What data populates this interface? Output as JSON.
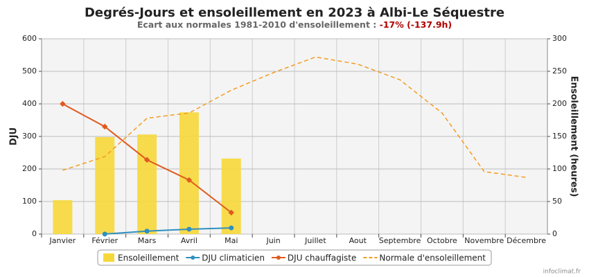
{
  "chart_data": {
    "type": "combo",
    "title": "Degrés-Jours et ensoleillement en 2023 à Albi-Le Séquestre",
    "subtitle": "Ecart aux normales 1981-2010 d'ensoleillement : ",
    "subtitle_highlight": "-17% (-137.9h)",
    "y_label": "DJU",
    "y2_label": "Ensoleillement (heures)",
    "categories": [
      "Janvier",
      "Février",
      "Mars",
      "Avril",
      "Mai",
      "Juin",
      "Juillet",
      "Aout",
      "Septembre",
      "Octobre",
      "Novembre",
      "Décembre"
    ],
    "ylim": [
      0,
      600
    ],
    "yticks": [
      0,
      100,
      200,
      300,
      400,
      500,
      600
    ],
    "y2lim": [
      0,
      300
    ],
    "y2ticks": [
      0,
      50,
      100,
      150,
      200,
      250,
      300
    ],
    "grid": true,
    "series": [
      {
        "name": "Ensoleillement",
        "type": "bar",
        "axis": "y2",
        "color": "#f7d83a",
        "values": [
          52,
          149,
          153,
          187,
          116,
          null,
          null,
          null,
          null,
          null,
          null,
          null
        ]
      },
      {
        "name": "DJU climaticien",
        "type": "line",
        "axis": "y",
        "color": "#2f8fc0",
        "values": [
          null,
          0,
          9,
          15,
          19,
          null,
          null,
          null,
          null,
          null,
          null,
          null
        ]
      },
      {
        "name": "DJU chauffagiste",
        "type": "line",
        "axis": "y",
        "color": "#e05a1e",
        "values": [
          400,
          330,
          228,
          166,
          66,
          null,
          null,
          null,
          null,
          null,
          null,
          null
        ]
      },
      {
        "name": "Normale d'ensoleillement",
        "type": "dashed",
        "axis": "y2",
        "color": "#f39c1f",
        "values": [
          98,
          119,
          178,
          186,
          221,
          248,
          272,
          261,
          237,
          186,
          96,
          87
        ]
      }
    ],
    "source": "infoclimat.fr"
  }
}
